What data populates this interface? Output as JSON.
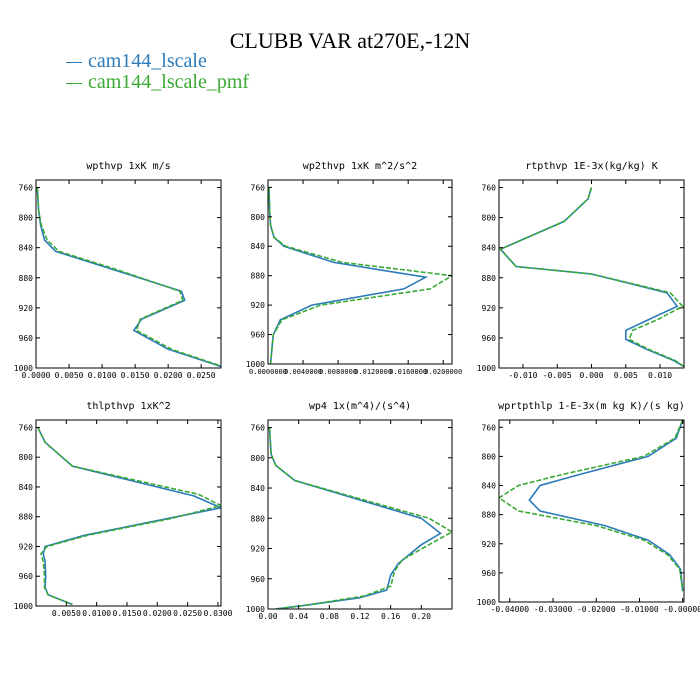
{
  "title": "CLUBB VAR at270E,-12N",
  "legend": [
    {
      "label": "cam144_lscale",
      "color": "#2b7bba"
    },
    {
      "label": "cam144_lscale_pmf",
      "color": "#3aaa35"
    }
  ],
  "chart_data": [
    {
      "type": "line",
      "title": "wpthvp  1xK m/s",
      "xlim": [
        0,
        0.028
      ],
      "ylim": [
        1000,
        750
      ],
      "xticks": [
        0,
        0.005,
        0.01,
        0.015,
        0.02,
        0.025
      ],
      "xtick_labels": [
        "0.0000",
        "0.0050",
        "0.0100",
        "0.0150",
        "0.0200",
        "0.0250"
      ],
      "yticks": [
        760,
        800,
        840,
        880,
        920,
        960,
        1000
      ],
      "ytick_labels": [
        "760",
        "800",
        "840",
        "880",
        "920",
        "960",
        "1000"
      ],
      "series": [
        {
          "name": "cam144_lscale",
          "x": [
            0.0002,
            0.0004,
            0.0007,
            0.0013,
            0.003,
            0.012,
            0.022,
            0.0225,
            0.016,
            0.0148,
            0.02,
            0.028
          ],
          "y": [
            760,
            790,
            810,
            830,
            845,
            870,
            898,
            910,
            935,
            950,
            975,
            998
          ]
        },
        {
          "name": "cam144_lscale_pmf",
          "x": [
            0.0002,
            0.0004,
            0.0008,
            0.0017,
            0.0035,
            0.0125,
            0.0218,
            0.0222,
            0.0158,
            0.0152,
            0.0205,
            0.0282
          ],
          "y": [
            760,
            790,
            810,
            830,
            845,
            870,
            898,
            910,
            935,
            950,
            975,
            998
          ]
        }
      ]
    },
    {
      "type": "line",
      "title": "wp2thvp  1xK m^2/s^2",
      "xlim": [
        0,
        0.021
      ],
      "ylim": [
        1000,
        750
      ],
      "xticks": [
        0,
        0.004,
        0.008,
        0.012,
        0.016,
        0.02
      ],
      "xtick_labels": [
        "0.0000000",
        "0.0040000",
        "0.0080000",
        "0.0120000",
        "0.0160000",
        "0.0200000"
      ],
      "yticks": [
        760,
        800,
        840,
        880,
        920,
        960,
        1000
      ],
      "ytick_labels": [
        "760",
        "800",
        "840",
        "880",
        "920",
        "960",
        "1000"
      ],
      "series": [
        {
          "name": "cam144_lscale",
          "x": [
            0.0001,
            0.0002,
            0.0003,
            0.0007,
            0.0018,
            0.0075,
            0.018,
            0.0155,
            0.005,
            0.0014,
            0.0006,
            0.0004,
            0.0003
          ],
          "y": [
            760,
            795,
            812,
            828,
            840,
            862,
            882,
            898,
            920,
            940,
            960,
            985,
            1000
          ]
        },
        {
          "name": "cam144_lscale_pmf",
          "x": [
            0.0001,
            0.0002,
            0.0003,
            0.0007,
            0.002,
            0.0085,
            0.021,
            0.0185,
            0.006,
            0.0016,
            0.0006,
            0.0004,
            0.0003
          ],
          "y": [
            760,
            795,
            812,
            828,
            840,
            862,
            880,
            898,
            920,
            940,
            960,
            985,
            1000
          ]
        }
      ]
    },
    {
      "type": "line",
      "title": "rtpthvp  1E-3x(kg/kg) K",
      "xlim": [
        -0.0135,
        0.0135
      ],
      "ylim": [
        1000,
        750
      ],
      "xticks": [
        -0.01,
        -0.005,
        0,
        0.005,
        0.01
      ],
      "xtick_labels": [
        "-0.010",
        "-0.005",
        "0.000",
        "0.005",
        "0.010"
      ],
      "yticks": [
        760,
        800,
        840,
        880,
        920,
        960,
        1000
      ],
      "ytick_labels": [
        "760",
        "800",
        "840",
        "880",
        "920",
        "960",
        "1000"
      ],
      "series": [
        {
          "name": "cam144_lscale",
          "x": [
            0.0,
            -0.0005,
            -0.004,
            -0.009,
            -0.0133,
            -0.011,
            0.0,
            0.011,
            0.0125,
            0.0085,
            0.005,
            0.005,
            0.008,
            0.012,
            0.0135
          ],
          "y": [
            760,
            775,
            805,
            825,
            842,
            865,
            875,
            900,
            918,
            935,
            950,
            962,
            975,
            990,
            998
          ]
        },
        {
          "name": "cam144_lscale_pmf",
          "x": [
            0.0,
            -0.0005,
            -0.004,
            -0.009,
            -0.0133,
            -0.011,
            0.0,
            0.0115,
            0.0133,
            0.0098,
            0.006,
            0.0055,
            0.0083,
            0.0122,
            0.0135
          ],
          "y": [
            760,
            775,
            805,
            825,
            842,
            865,
            875,
            900,
            918,
            935,
            950,
            962,
            975,
            990,
            998
          ]
        }
      ]
    },
    {
      "type": "line",
      "title": "thlpthvp  1xK^2",
      "xlim": [
        0,
        0.0305
      ],
      "ylim": [
        1000,
        750
      ],
      "xticks": [
        0.005,
        0.01,
        0.015,
        0.02,
        0.025,
        0.03
      ],
      "xtick_labels": [
        "0.0050",
        "0.0100",
        "0.0150",
        "0.0200",
        "0.0250",
        "0.0300"
      ],
      "yticks": [
        760,
        800,
        840,
        880,
        920,
        960,
        1000
      ],
      "ytick_labels": [
        "760",
        "800",
        "840",
        "880",
        "920",
        "960",
        "1000"
      ],
      "series": [
        {
          "name": "cam144_lscale",
          "x": [
            0.0003,
            0.0015,
            0.006,
            0.026,
            0.0305,
            0.022,
            0.008,
            0.0015,
            0.0012,
            0.0015,
            0.0016,
            0.0015,
            0.002,
            0.006
          ],
          "y": [
            760,
            780,
            812,
            852,
            868,
            882,
            905,
            920,
            930,
            940,
            960,
            975,
            985,
            998
          ]
        },
        {
          "name": "cam144_lscale_pmf",
          "x": [
            0.0003,
            0.0015,
            0.006,
            0.0268,
            0.0305,
            0.0225,
            0.0085,
            0.0018,
            0.0008,
            0.0012,
            0.0014,
            0.0014,
            0.002,
            0.006
          ],
          "y": [
            760,
            780,
            812,
            850,
            865,
            882,
            905,
            920,
            930,
            940,
            960,
            975,
            985,
            998
          ]
        }
      ]
    },
    {
      "type": "line",
      "title": "wp4  1x(m^4)/(s^4)",
      "xlim": [
        0,
        0.24
      ],
      "ylim": [
        1000,
        750
      ],
      "xticks": [
        0,
        0.04,
        0.08,
        0.12,
        0.16,
        0.2
      ],
      "xtick_labels": [
        "0.00",
        "0.04",
        "0.08",
        "0.12",
        "0.16",
        "0.20"
      ],
      "yticks": [
        760,
        800,
        840,
        880,
        920,
        960,
        1000
      ],
      "ytick_labels": [
        "760",
        "800",
        "840",
        "880",
        "920",
        "960",
        "1000"
      ],
      "series": [
        {
          "name": "cam144_lscale",
          "x": [
            0.002,
            0.004,
            0.01,
            0.035,
            0.2,
            0.225,
            0.2,
            0.17,
            0.16,
            0.155,
            0.12,
            0.05,
            0.01
          ],
          "y": [
            760,
            795,
            810,
            830,
            880,
            900,
            915,
            940,
            955,
            975,
            985,
            995,
            1000
          ]
        },
        {
          "name": "cam144_lscale_pmf",
          "x": [
            0.002,
            0.004,
            0.01,
            0.035,
            0.21,
            0.24,
            0.21,
            0.175,
            0.165,
            0.16,
            0.125,
            0.05,
            0.01
          ],
          "y": [
            760,
            795,
            810,
            830,
            880,
            898,
            915,
            935,
            950,
            970,
            983,
            995,
            1000
          ]
        }
      ]
    },
    {
      "type": "line",
      "title": "wprtpthlp  1-E-3x(m kg K)/(s kg)",
      "xlim": [
        -0.0425,
        0.0003
      ],
      "ylim": [
        1000,
        750
      ],
      "xticks": [
        -0.04,
        -0.03,
        -0.02,
        -0.01,
        0
      ],
      "xtick_labels": [
        "-0.04000",
        "-0.03000",
        "-0.02000",
        "-0.01000",
        "-0.00000"
      ],
      "yticks": [
        760,
        800,
        840,
        880,
        920,
        960,
        1000
      ],
      "ytick_labels": [
        "760",
        "800",
        "840",
        "880",
        "920",
        "960",
        "1000"
      ],
      "series": [
        {
          "name": "cam144_lscale",
          "x": [
            0.0,
            -0.0015,
            -0.008,
            -0.024,
            -0.033,
            -0.0355,
            -0.033,
            -0.018,
            -0.008,
            -0.003,
            -0.0005,
            0.0
          ],
          "y": [
            750,
            775,
            800,
            825,
            840,
            860,
            875,
            895,
            915,
            935,
            955,
            985
          ]
        },
        {
          "name": "cam144_lscale_pmf",
          "x": [
            0.0,
            -0.0018,
            -0.009,
            -0.028,
            -0.038,
            -0.0425,
            -0.038,
            -0.02,
            -0.009,
            -0.0035,
            -0.0007,
            0.0
          ],
          "y": [
            750,
            775,
            800,
            825,
            840,
            857,
            875,
            895,
            915,
            935,
            955,
            985
          ]
        }
      ]
    }
  ]
}
